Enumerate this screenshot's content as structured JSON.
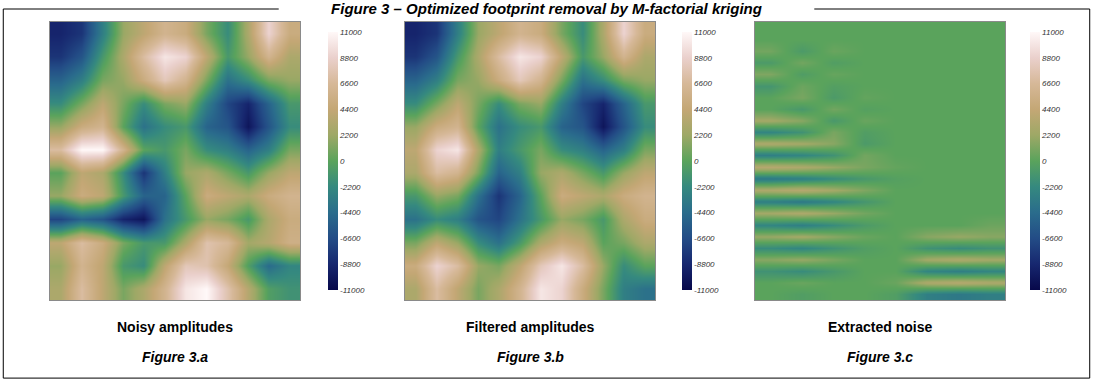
{
  "title": "Figure 3 – Optimized footprint removal by M-factorial kriging",
  "chart_data": [
    {
      "type": "heatmap",
      "title": "Noisy amplitudes",
      "subtitle": "Figure 3.a",
      "tick_labels": false,
      "zlim": [
        -11000,
        11000
      ],
      "zticks": [
        -11000,
        -8800,
        -6600,
        -4400,
        -2200,
        0,
        2200,
        4400,
        6600,
        8800,
        11000
      ],
      "z": [
        [
          -9000,
          -8000,
          -3000,
          2000,
          4000,
          6000,
          5000,
          1000,
          -2000,
          3000,
          9000,
          5000
        ],
        [
          -8000,
          -6000,
          -1000,
          3000,
          7000,
          10000,
          9000,
          4000,
          -1000,
          2000,
          6000,
          3000
        ],
        [
          -5000,
          -3000,
          1000,
          2000,
          5000,
          8000,
          6000,
          1000,
          -4000,
          -2000,
          1000,
          2000
        ],
        [
          -2000,
          1000,
          4000,
          1000,
          -2000,
          1000,
          2000,
          -3000,
          -7000,
          -9000,
          -5000,
          -1000
        ],
        [
          2000,
          5000,
          6000,
          0,
          -4000,
          -2000,
          -1000,
          -5000,
          -6000,
          -10000,
          -6000,
          -2000
        ],
        [
          7000,
          11000,
          11000,
          6000,
          0,
          -1000,
          1000,
          -2000,
          -3000,
          -5000,
          -3000,
          1000
        ],
        [
          0,
          4000,
          3000,
          -2000,
          -8000,
          -3000,
          2000,
          3000,
          1000,
          -1000,
          2000,
          4000
        ],
        [
          2000,
          5000,
          4000,
          -1000,
          -5000,
          -5000,
          0,
          5000,
          4000,
          3000,
          5000,
          6000
        ],
        [
          -7000,
          -5000,
          -6000,
          -9000,
          -10000,
          -4000,
          -1000,
          2000,
          1000,
          -1000,
          3000,
          5000
        ],
        [
          4000,
          7000,
          5000,
          1000,
          -1000,
          -1000,
          3000,
          7500,
          6500,
          2500,
          3500,
          5500
        ],
        [
          2000,
          6000,
          4000,
          -1000,
          -2000,
          4000,
          8000,
          7500,
          4500,
          -500,
          -4500,
          -2500
        ],
        [
          3000,
          7000,
          4000,
          1000,
          3000,
          6000,
          10000,
          11000,
          7500,
          3500,
          -500,
          -1500
        ]
      ]
    },
    {
      "type": "heatmap",
      "title": "Filtered amplitudes",
      "subtitle": "Figure 3.b",
      "tick_labels": false,
      "zlim": [
        -11000,
        11000
      ],
      "zticks": [
        -11000,
        -8800,
        -6600,
        -4400,
        -2200,
        0,
        2200,
        4400,
        6600,
        8800,
        11000
      ],
      "z": [
        [
          -9000,
          -8000,
          -3000,
          2000,
          4000,
          6000,
          5000,
          1000,
          -2000,
          3000,
          9000,
          5000
        ],
        [
          -8000,
          -6000,
          -1000,
          3000,
          7000,
          10000,
          9000,
          4000,
          -1000,
          2000,
          6000,
          3000
        ],
        [
          -5000,
          -3000,
          1000,
          2000,
          5000,
          8000,
          6000,
          1000,
          -4000,
          -2000,
          1000,
          2000
        ],
        [
          -2000,
          1000,
          4000,
          1000,
          -2000,
          1000,
          2000,
          -3000,
          -7000,
          -9000,
          -5000,
          -1000
        ],
        [
          2000,
          5000,
          6000,
          0,
          -4000,
          -2000,
          -1000,
          -5000,
          -6000,
          -10000,
          -6000,
          -2000
        ],
        [
          4000,
          9000,
          10000,
          3000,
          -3000,
          -1000,
          1000,
          -2000,
          -3000,
          -5000,
          -3000,
          1000
        ],
        [
          3000,
          7000,
          6000,
          1000,
          -5000,
          -3000,
          2000,
          3000,
          1000,
          -1000,
          2000,
          4000
        ],
        [
          -1000,
          2000,
          1000,
          -4000,
          -8000,
          -5000,
          0,
          5000,
          4000,
          3000,
          5000,
          6000
        ],
        [
          -4000,
          -2000,
          -3000,
          -6000,
          -7000,
          -4000,
          -1000,
          2000,
          1000,
          -1000,
          3000,
          5000
        ],
        [
          1000,
          4000,
          2000,
          -2000,
          -4000,
          -1000,
          3000,
          5000,
          4000,
          0,
          1000,
          3000
        ],
        [
          5000,
          9000,
          7000,
          2000,
          1000,
          4000,
          8000,
          10000,
          7000,
          2000,
          -2000,
          0
        ],
        [
          3000,
          7000,
          4000,
          1000,
          3000,
          6000,
          10000,
          9000,
          5000,
          1000,
          -3000,
          -4000
        ]
      ]
    },
    {
      "type": "heatmap",
      "title": "Extracted noise",
      "subtitle": "Figure 3.c",
      "tick_labels": false,
      "zlim": [
        -11000,
        11000
      ],
      "zticks": [
        -11000,
        -8800,
        -6600,
        -4400,
        -2200,
        0,
        2200,
        4400,
        6600,
        8800,
        11000
      ],
      "z": [
        [
          0,
          0,
          0,
          0,
          0,
          0,
          0,
          0
        ],
        [
          0,
          0,
          0,
          0,
          0,
          0,
          0,
          0
        ],
        [
          800,
          -800,
          500,
          0,
          0,
          0,
          0,
          0
        ],
        [
          -800,
          800,
          -500,
          0,
          0,
          0,
          0,
          0
        ],
        [
          1200,
          -600,
          400,
          0,
          0,
          0,
          0,
          0
        ],
        [
          -1200,
          600,
          -400,
          0,
          0,
          0,
          0,
          0
        ],
        [
          0,
          1000,
          -800,
          300,
          0,
          0,
          0,
          0
        ],
        [
          0,
          -1000,
          800,
          -300,
          0,
          0,
          0,
          0
        ],
        [
          2500,
          1500,
          -1000,
          500,
          0,
          0,
          0,
          0
        ],
        [
          -2500,
          -1500,
          1000,
          -500,
          0,
          0,
          0,
          0
        ],
        [
          3000,
          2500,
          1500,
          -800,
          0,
          0,
          0,
          0
        ],
        [
          -3000,
          -2500,
          -1500,
          800,
          0,
          0,
          0,
          0
        ],
        [
          3500,
          3000,
          2000,
          1000,
          300,
          0,
          0,
          0
        ],
        [
          -3500,
          -3000,
          -2000,
          -1000,
          -300,
          0,
          0,
          0
        ],
        [
          3000,
          3500,
          2500,
          1200,
          0,
          0,
          0,
          0
        ],
        [
          -3000,
          -3500,
          -2500,
          -1200,
          0,
          0,
          0,
          0
        ],
        [
          2500,
          3000,
          2000,
          800,
          0,
          0,
          0,
          0
        ],
        [
          -2500,
          -3000,
          -2000,
          -800,
          0,
          0,
          0,
          600
        ],
        [
          2000,
          2500,
          1500,
          500,
          0,
          1500,
          2000,
          1500
        ],
        [
          -2000,
          -2500,
          -1500,
          -500,
          0,
          -1500,
          -2000,
          -1500
        ],
        [
          1500,
          2000,
          1000,
          0,
          0,
          2500,
          3000,
          2500
        ],
        [
          -1500,
          -2000,
          -1000,
          0,
          0,
          -2500,
          -3000,
          -2500
        ],
        [
          0,
          500,
          0,
          0,
          500,
          3000,
          3500,
          3000
        ],
        [
          0,
          -500,
          0,
          0,
          -500,
          -3000,
          -3500,
          -3000
        ]
      ]
    }
  ]
}
